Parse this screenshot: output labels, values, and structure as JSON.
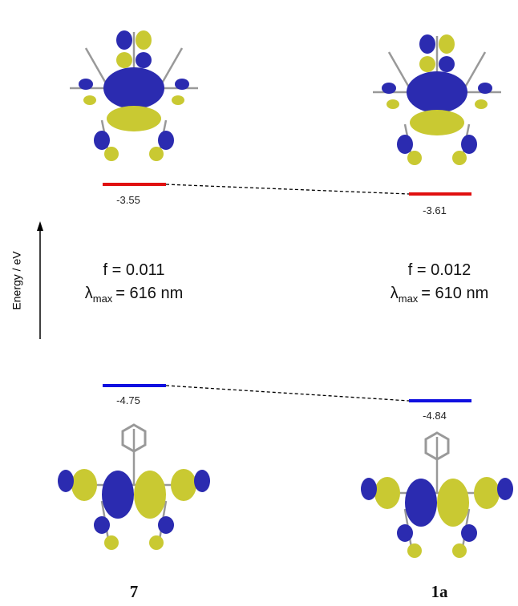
{
  "axis_label": "Energy / eV",
  "compounds": [
    {
      "label": "7",
      "lumo": "-3.55",
      "homo": "-4.75",
      "f": "f = 0.011",
      "lambda_symbol": "λ",
      "lambda_sub": "max",
      "lambda_value": "= 616 nm"
    },
    {
      "label": "1a",
      "lumo": "-3.61",
      "homo": "-4.84",
      "f": "f = 0.012",
      "lambda_symbol": "λ",
      "lambda_sub": "max",
      "lambda_value": "= 610 nm"
    }
  ]
}
